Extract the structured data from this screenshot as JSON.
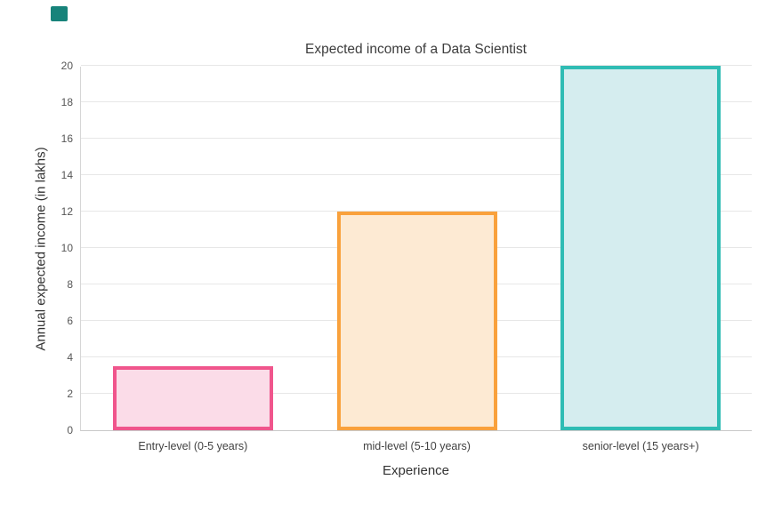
{
  "chart_data": {
    "type": "bar",
    "title": "Expected income of a Data Scientist",
    "xlabel": "Experience",
    "ylabel": "Annual expected income (in lakhs)",
    "categories": [
      "Entry-level (0-5 years)",
      "mid-level (5-10 years)",
      "senior-level (15 years+)"
    ],
    "values": [
      3.5,
      12,
      20
    ],
    "ylim": [
      0,
      20
    ],
    "ytick_step": 2,
    "grid": "horizontal",
    "legend": "none",
    "bar_colors": [
      {
        "border": "#f0558c",
        "fill": "#fbdce8"
      },
      {
        "border": "#f9a13c",
        "fill": "#fdead3"
      },
      {
        "border": "#2fbcb4",
        "fill": "#d5edef"
      }
    ]
  },
  "decor": {
    "corner_marker_color": "#17837a"
  }
}
